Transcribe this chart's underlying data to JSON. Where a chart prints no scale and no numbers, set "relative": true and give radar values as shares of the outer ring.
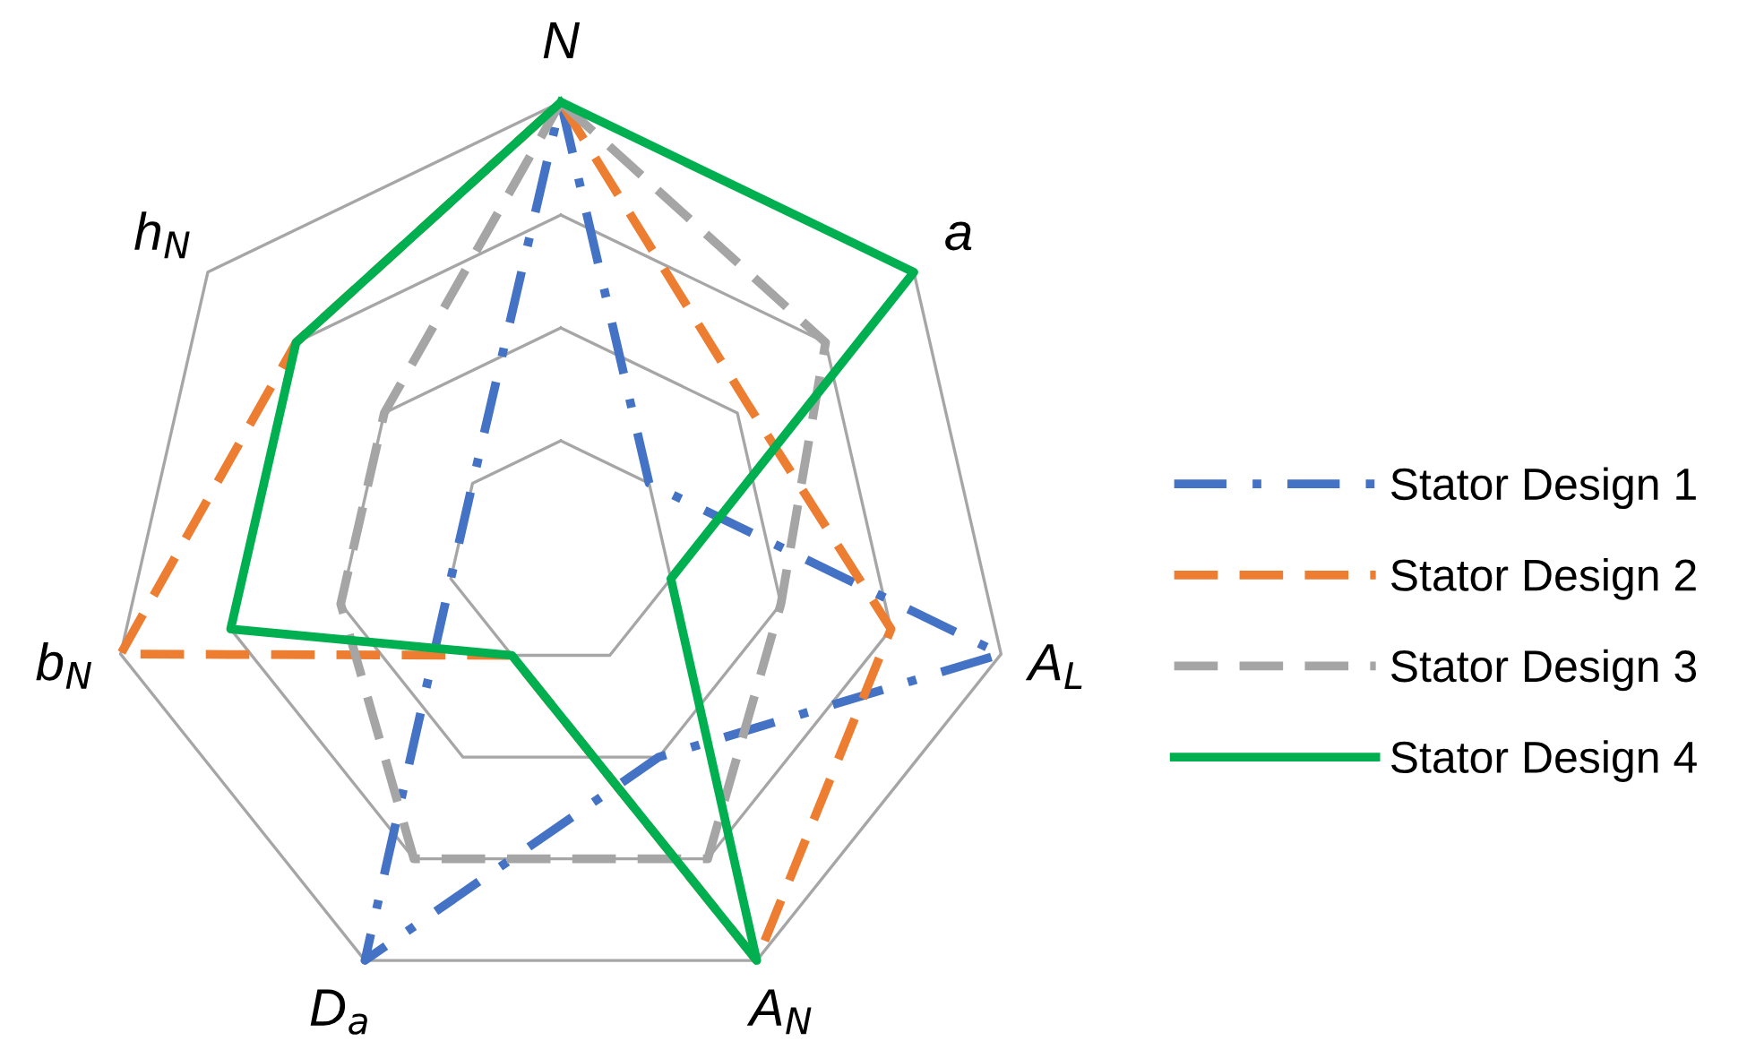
{
  "chart_data": {
    "type": "radar",
    "relative": true,
    "grid": true,
    "legend": "right",
    "categories": [
      "N",
      "a",
      "A$_{L}$",
      "A$_{N}$",
      "D$_{a}$",
      "b$_{N}$",
      "h$_{N}$"
    ],
    "series": [
      {
        "name": "Stator Design 1",
        "color": "#4472c4",
        "line_style": "dashdot",
        "values": [
          1,
          0.25,
          1,
          0.5,
          1,
          0.25,
          0.25
        ]
      },
      {
        "name": "Stator Design 2",
        "color": "#ed7d31",
        "line_style": "dashed",
        "values": [
          1,
          0.53,
          0.75,
          1,
          0.25,
          1,
          0.75
        ]
      },
      {
        "name": "Stator Design 3",
        "color": "#a5a5a5",
        "line_style": "dashed",
        "values": [
          1,
          0.75,
          0.5,
          0.75,
          0.75,
          0.5,
          0.5
        ]
      },
      {
        "name": "Stator Design 4",
        "color": "#00b050",
        "line_style": "solid",
        "values": [
          1,
          1,
          0.25,
          1,
          0.25,
          0.75,
          0.75
        ]
      }
    ]
  }
}
